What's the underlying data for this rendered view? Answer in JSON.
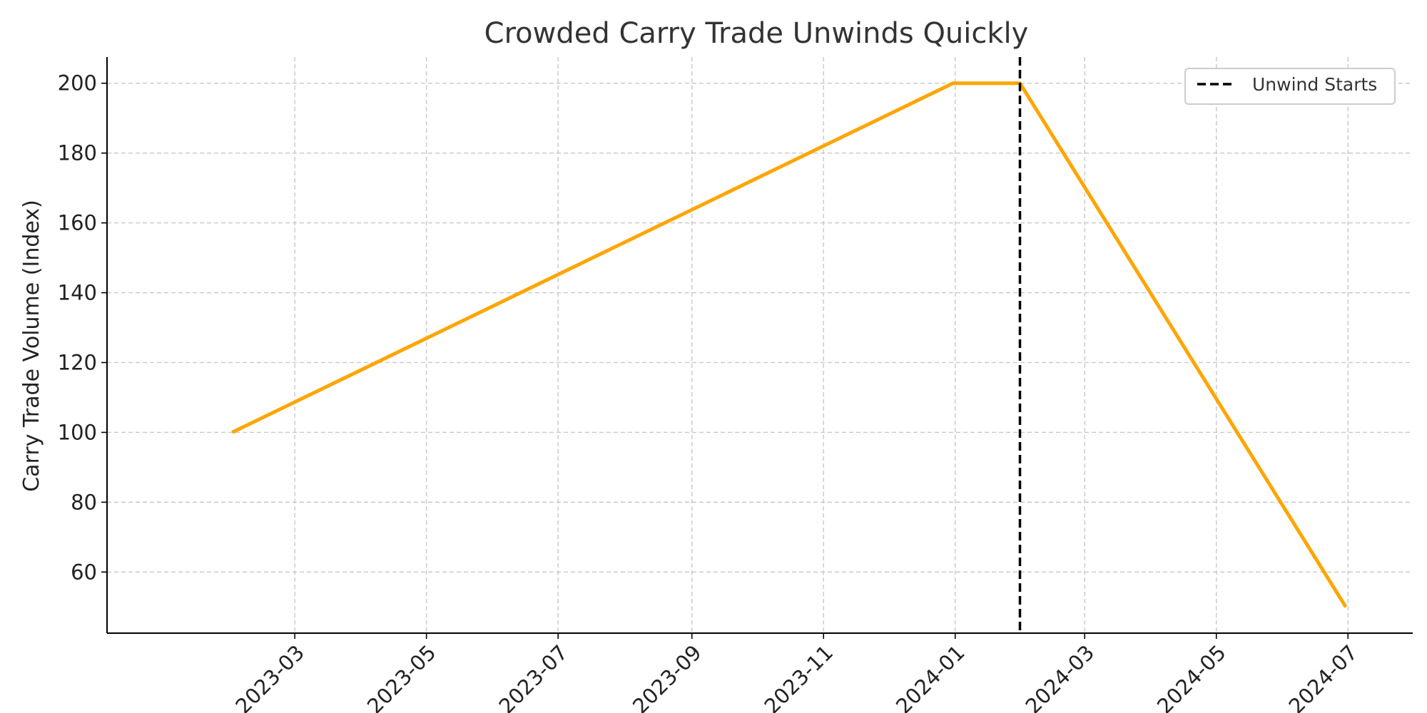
{
  "chart_data": {
    "type": "line",
    "title": "Crowded Carry Trade Unwinds Quickly",
    "xlabel": "",
    "ylabel": "Carry Trade Volume (Index)",
    "x_type": "date",
    "xlim": [
      "2022-12-04",
      "2024-07-31"
    ],
    "ylim": [
      42.5,
      207.5
    ],
    "x_ticks": [
      "2023-03",
      "2023-05",
      "2023-07",
      "2023-09",
      "2023-11",
      "2024-01",
      "2024-03",
      "2024-05",
      "2024-07"
    ],
    "y_ticks": [
      60,
      80,
      100,
      120,
      140,
      160,
      180,
      200
    ],
    "grid": true,
    "grid_style": "dashed",
    "spines": "left-bottom",
    "legend_position": "top-right",
    "series": [
      {
        "color": "#FFA500",
        "x": [
          "2023-01-31",
          "2023-12-31",
          "2024-01-31",
          "2024-06-30"
        ],
        "y": [
          100,
          200,
          200,
          50
        ]
      }
    ],
    "vlines": [
      {
        "name": "Unwind Starts",
        "x": "2024-01-31",
        "color": "#000000",
        "style": "dashed"
      }
    ]
  }
}
